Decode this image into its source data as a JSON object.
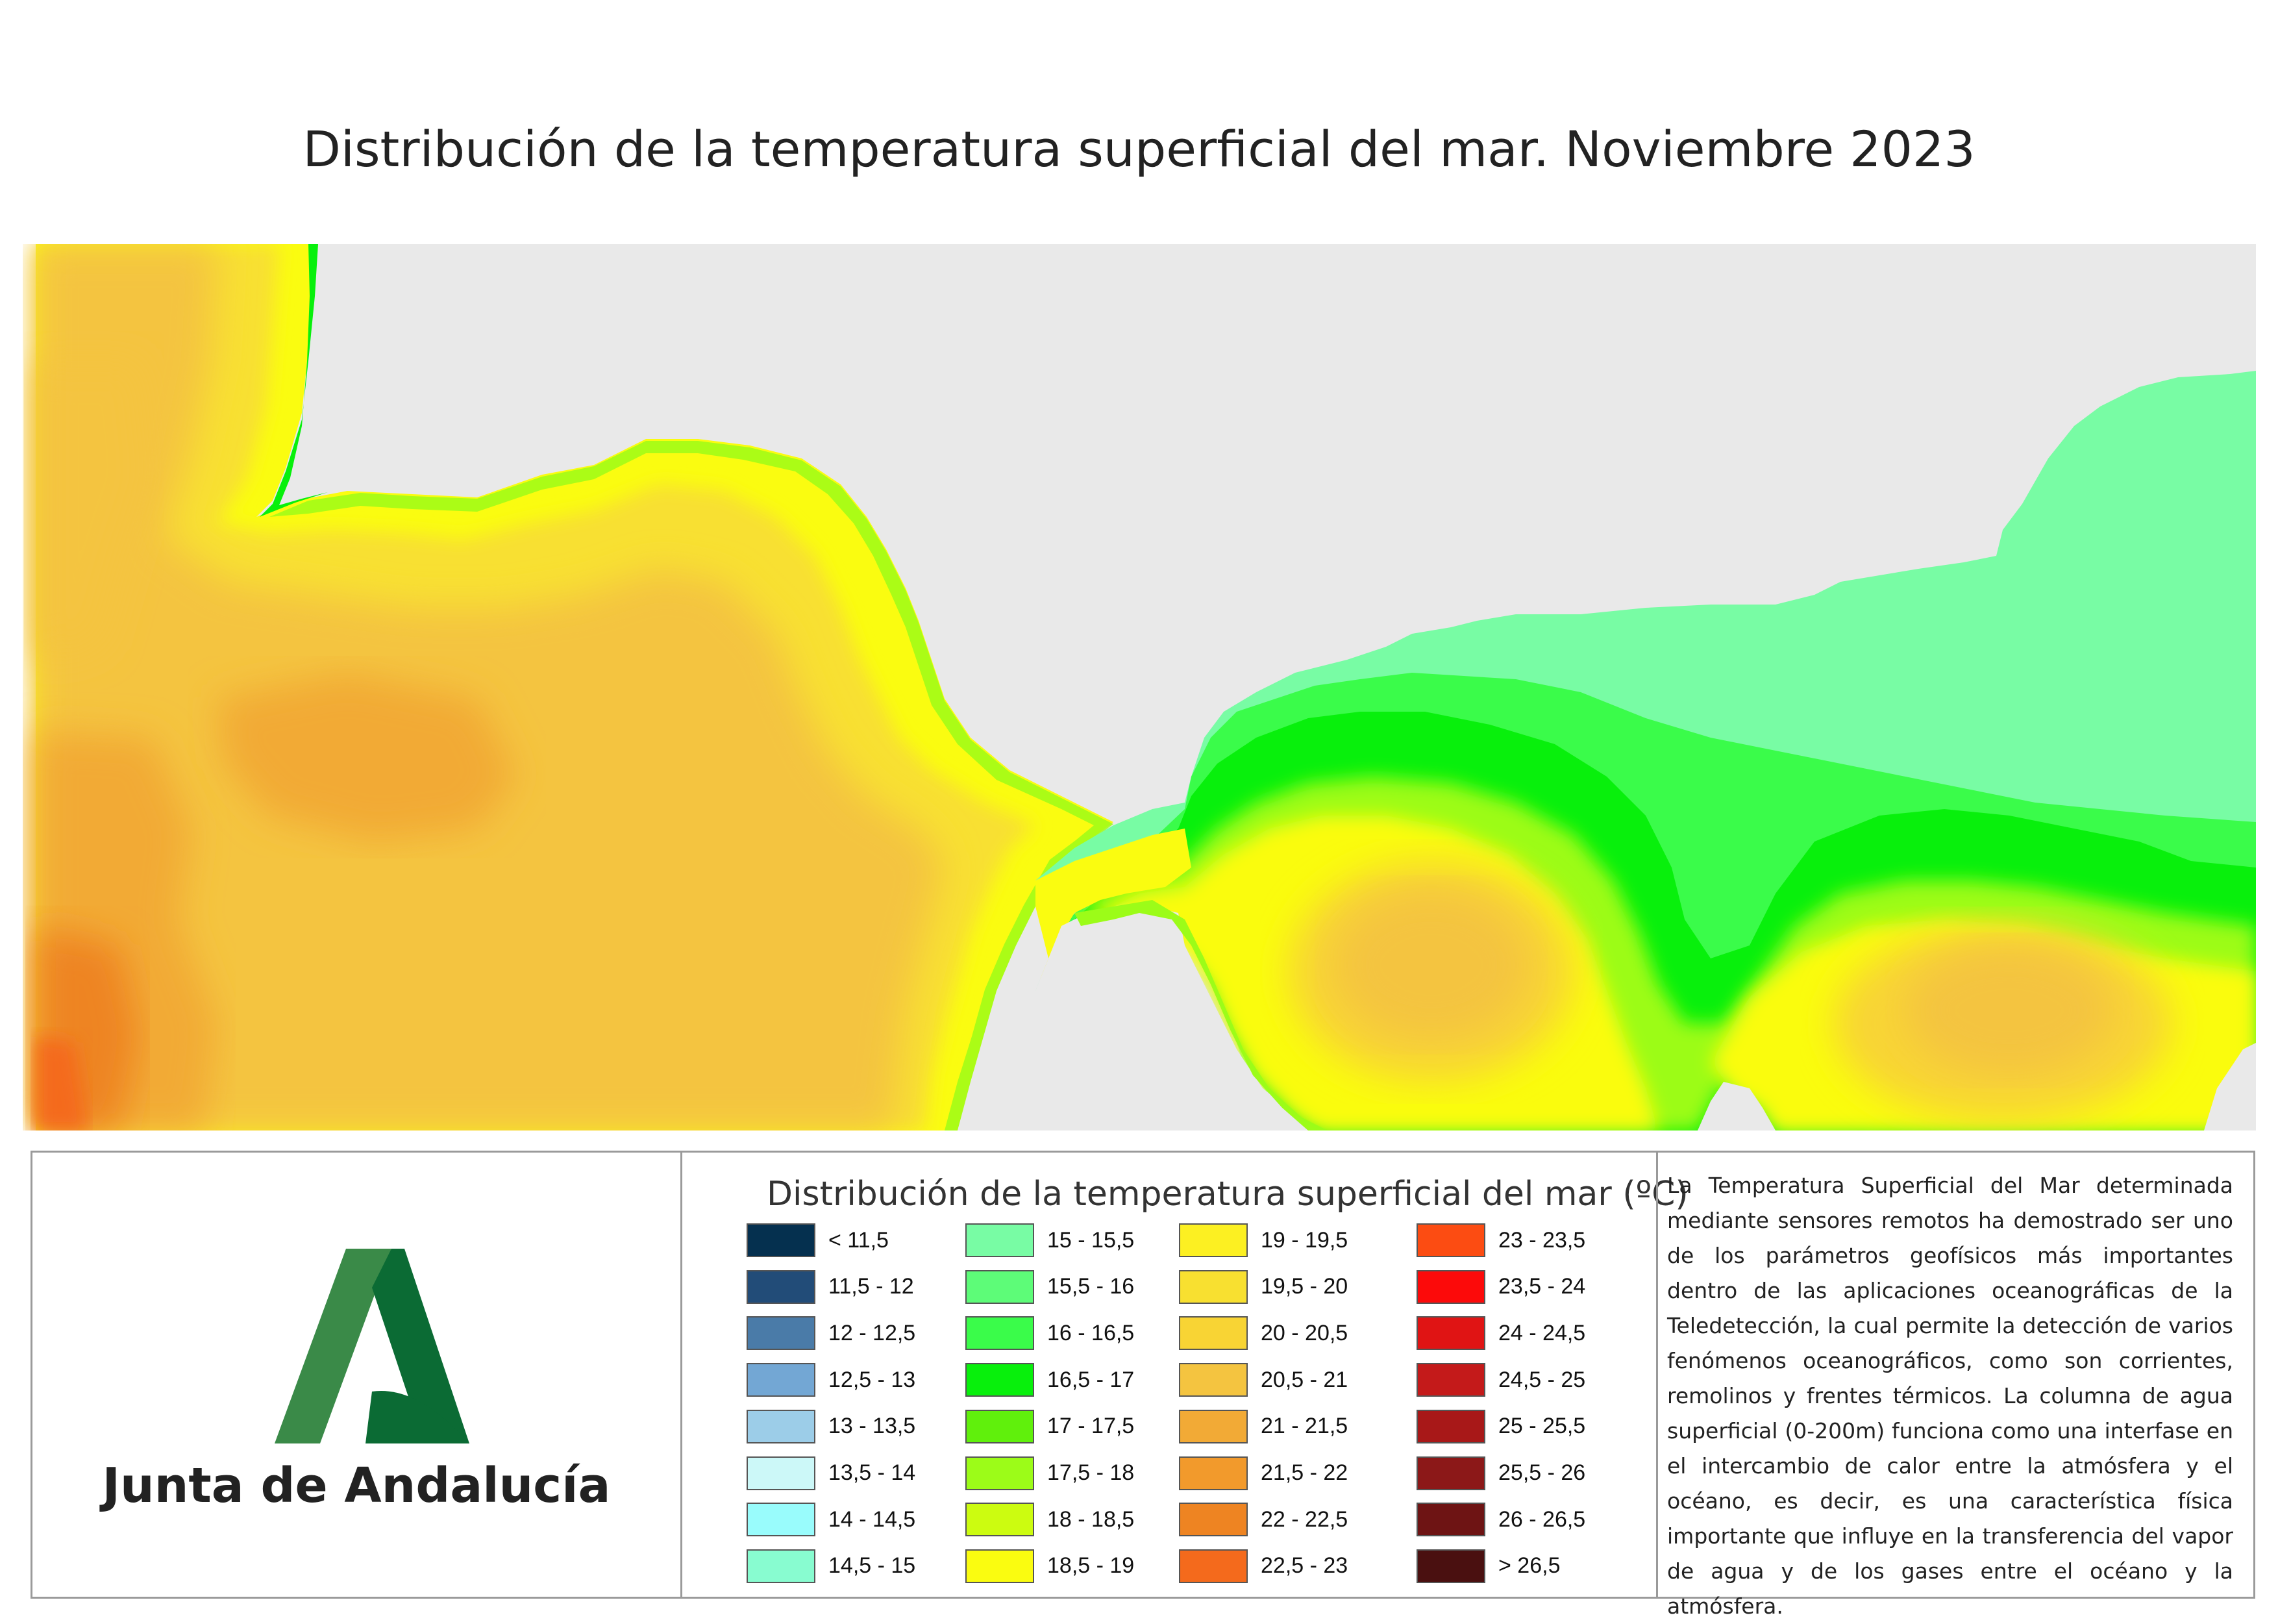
{
  "title": "Distribución de la temperatura superficial del mar. Noviembre 2023",
  "logo": {
    "organization": "Junta de Andalucía"
  },
  "legend": {
    "title": "Distribución de la temperatura superficial del mar (ºC)",
    "items": [
      {
        "label": "< 11,5",
        "color": "#05304f"
      },
      {
        "label": "11,5 - 12",
        "color": "#224c78"
      },
      {
        "label": "12 - 12,5",
        "color": "#4a7ba8"
      },
      {
        "label": "12,5 - 13",
        "color": "#73a7d4"
      },
      {
        "label": "13 - 13,5",
        "color": "#9ccde8"
      },
      {
        "label": "13,5 - 14",
        "color": "#ccf8f8"
      },
      {
        "label": "14 - 14,5",
        "color": "#99fcfc"
      },
      {
        "label": "14,5 - 15",
        "color": "#88fcd0"
      },
      {
        "label": "15 - 15,5",
        "color": "#78fca4"
      },
      {
        "label": "15,5 - 16",
        "color": "#5dfc78"
      },
      {
        "label": "16 - 16,5",
        "color": "#3afc4a"
      },
      {
        "label": "16,5 - 17",
        "color": "#08f00c"
      },
      {
        "label": "17 - 17,5",
        "color": "#60f00c"
      },
      {
        "label": "17,5 - 18",
        "color": "#9cfc18"
      },
      {
        "label": "18 - 18,5",
        "color": "#ccfc10"
      },
      {
        "label": "18,5 - 19",
        "color": "#fafc10"
      },
      {
        "label": "19 - 19,5",
        "color": "#fcf022"
      },
      {
        "label": "19,5 - 20",
        "color": "#f8e030"
      },
      {
        "label": "20 - 20,5",
        "color": "#f8d434"
      },
      {
        "label": "20,5 - 21",
        "color": "#f4c440"
      },
      {
        "label": "21 - 21,5",
        "color": "#f2aa36"
      },
      {
        "label": "21,5 - 22",
        "color": "#f29a2c"
      },
      {
        "label": "22 - 22,5",
        "color": "#ee8422"
      },
      {
        "label": "22,5 - 23",
        "color": "#f46a1c"
      },
      {
        "label": "23 - 23,5",
        "color": "#fc4c12"
      },
      {
        "label": "23,5 - 24",
        "color": "#fc0a0a"
      },
      {
        "label": "24 - 24,5",
        "color": "#e01414"
      },
      {
        "label": "24,5 - 25",
        "color": "#c41a1a"
      },
      {
        "label": "25 - 25,5",
        "color": "#a81818"
      },
      {
        "label": "25,5 - 26",
        "color": "#8c1818"
      },
      {
        "label": "26 - 26,5",
        "color": "#6e1414"
      },
      {
        "label": "> 26,5",
        "color": "#4a1010"
      }
    ]
  },
  "description": "La Temperatura Superficial del Mar determinada mediante sensores remotos ha demostrado ser uno de los parámetros geofísicos más importantes dentro de las aplicaciones oceanográficas de la Teledetección, la cual permite la detección de varios fenómenos oceanográficos, como son corrientes, remolinos y frentes térmicos. La columna de agua superficial (0-200m) funciona como una interfase en el intercambio de calor entre la atmósfera y el océano, es decir, es una característica física importante que influye en la transferencia del vapor de agua y de los gases entre el océano y la atmósfera.",
  "map": {
    "land_color": "#e9e9e9",
    "zones": [
      {
        "name": "atlantic-warm-core",
        "color": "#f29a2c"
      },
      {
        "name": "western-gyre-core",
        "color": "#f4c440"
      },
      {
        "name": "eastern-gyre-core",
        "color": "#f8d434"
      }
    ]
  }
}
